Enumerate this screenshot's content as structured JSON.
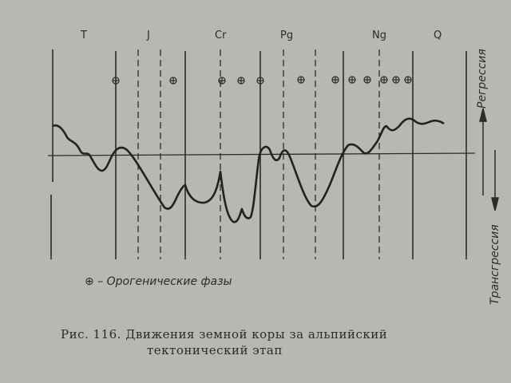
{
  "periods": [
    "T",
    "J",
    "Cr",
    "Pg",
    "Ng",
    "Q"
  ],
  "right_labels": {
    "regression": "Регрессия",
    "transgression": "Трансгрессия"
  },
  "legend": {
    "symbol": "⊕",
    "text": "– Орогенические фазы"
  },
  "caption": {
    "line1": "Рис. 116. Движения земной коры за альпийский",
    "line2": "тектонический этап"
  },
  "colors": {
    "background": "#b7b8b3",
    "ink": "#2b2b2b"
  }
}
